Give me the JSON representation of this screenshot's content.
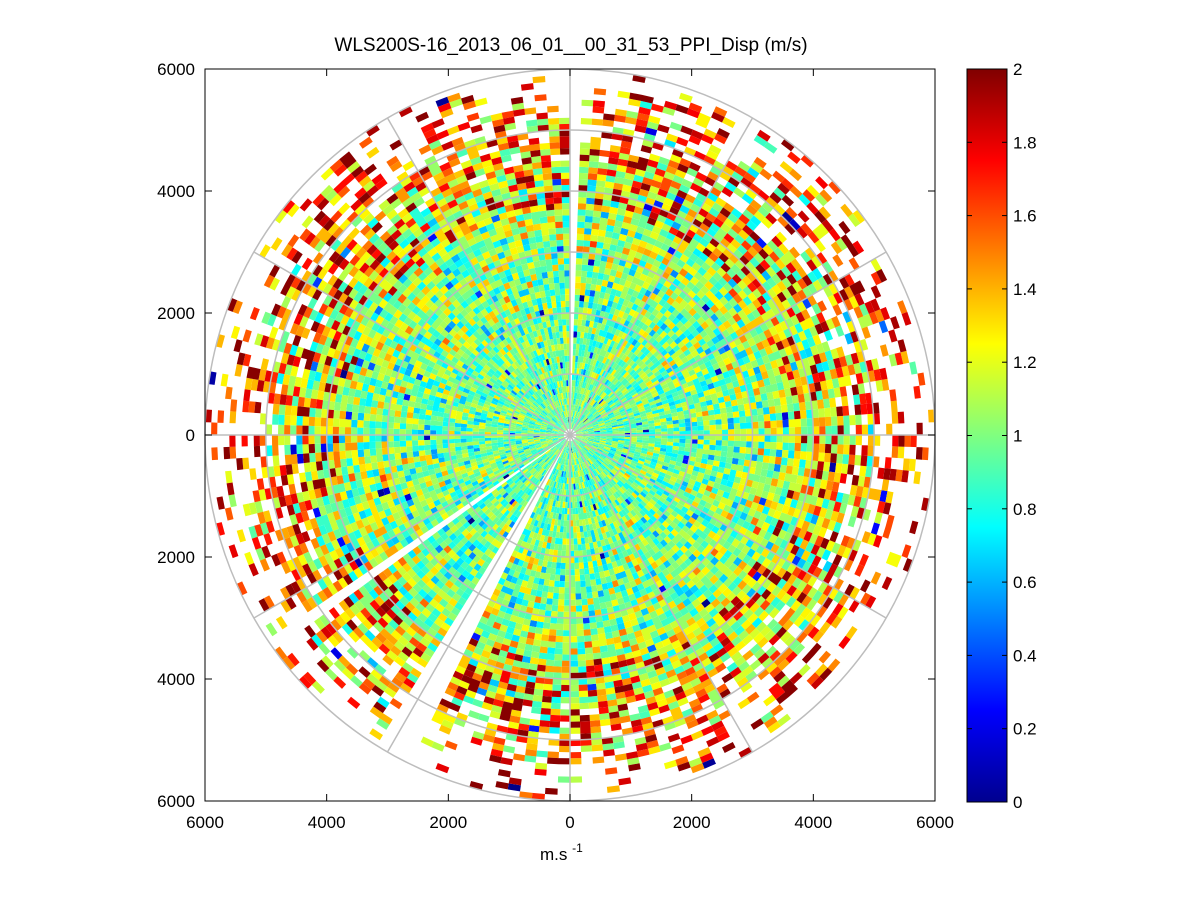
{
  "chart_data": {
    "type": "heatmap",
    "subtype": "polar-ppi-scan",
    "title": "WLS200S-16_2013_06_01__00_31_53_PPI_Disp (m/s)",
    "xlabel": "m.s",
    "xlabel_superscript": "-1",
    "ylabel": "",
    "xlim": [
      -6000,
      6000
    ],
    "ylim": [
      -6000,
      6000
    ],
    "x_ticks": [
      -6000,
      -4000,
      -2000,
      0,
      2000,
      4000,
      6000
    ],
    "x_tick_labels": [
      "6000",
      "4000",
      "2000",
      "0",
      "2000",
      "4000",
      "6000"
    ],
    "y_ticks": [
      6000,
      4000,
      2000,
      0,
      -2000,
      -4000,
      -6000
    ],
    "y_tick_labels": [
      "6000",
      "4000",
      "2000",
      "0",
      "2000",
      "4000",
      "6000"
    ],
    "range_rings_m": [
      1000,
      2000,
      3000,
      4000,
      5000,
      6000
    ],
    "spokes_deg": [
      0,
      30,
      60,
      90,
      120,
      150,
      180,
      210,
      240,
      270,
      300,
      330
    ],
    "max_range_m": 6000,
    "min_range_m": 100,
    "range_gate_m": 100,
    "azimuth_step_deg": 2,
    "grid": true,
    "data_gaps_azimuth_deg": [
      [
        0,
        2
      ],
      [
        206,
        212
      ],
      [
        234,
        236
      ]
    ],
    "colorbar": {
      "colormap": "jet",
      "min": 0,
      "max": 2,
      "ticks": [
        0,
        0.2,
        0.4,
        0.6,
        0.8,
        1,
        1.2,
        1.4,
        1.6,
        1.8,
        2
      ],
      "tick_labels": [
        "0",
        "0.2",
        "0.4",
        "0.6",
        "0.8",
        "1",
        "1.2",
        "1.4",
        "1.6",
        "1.8",
        "2"
      ]
    },
    "field_description": {
      "near_range_mean": 0.95,
      "far_range_mean": 1.6,
      "typical_spread": 0.25
    }
  }
}
